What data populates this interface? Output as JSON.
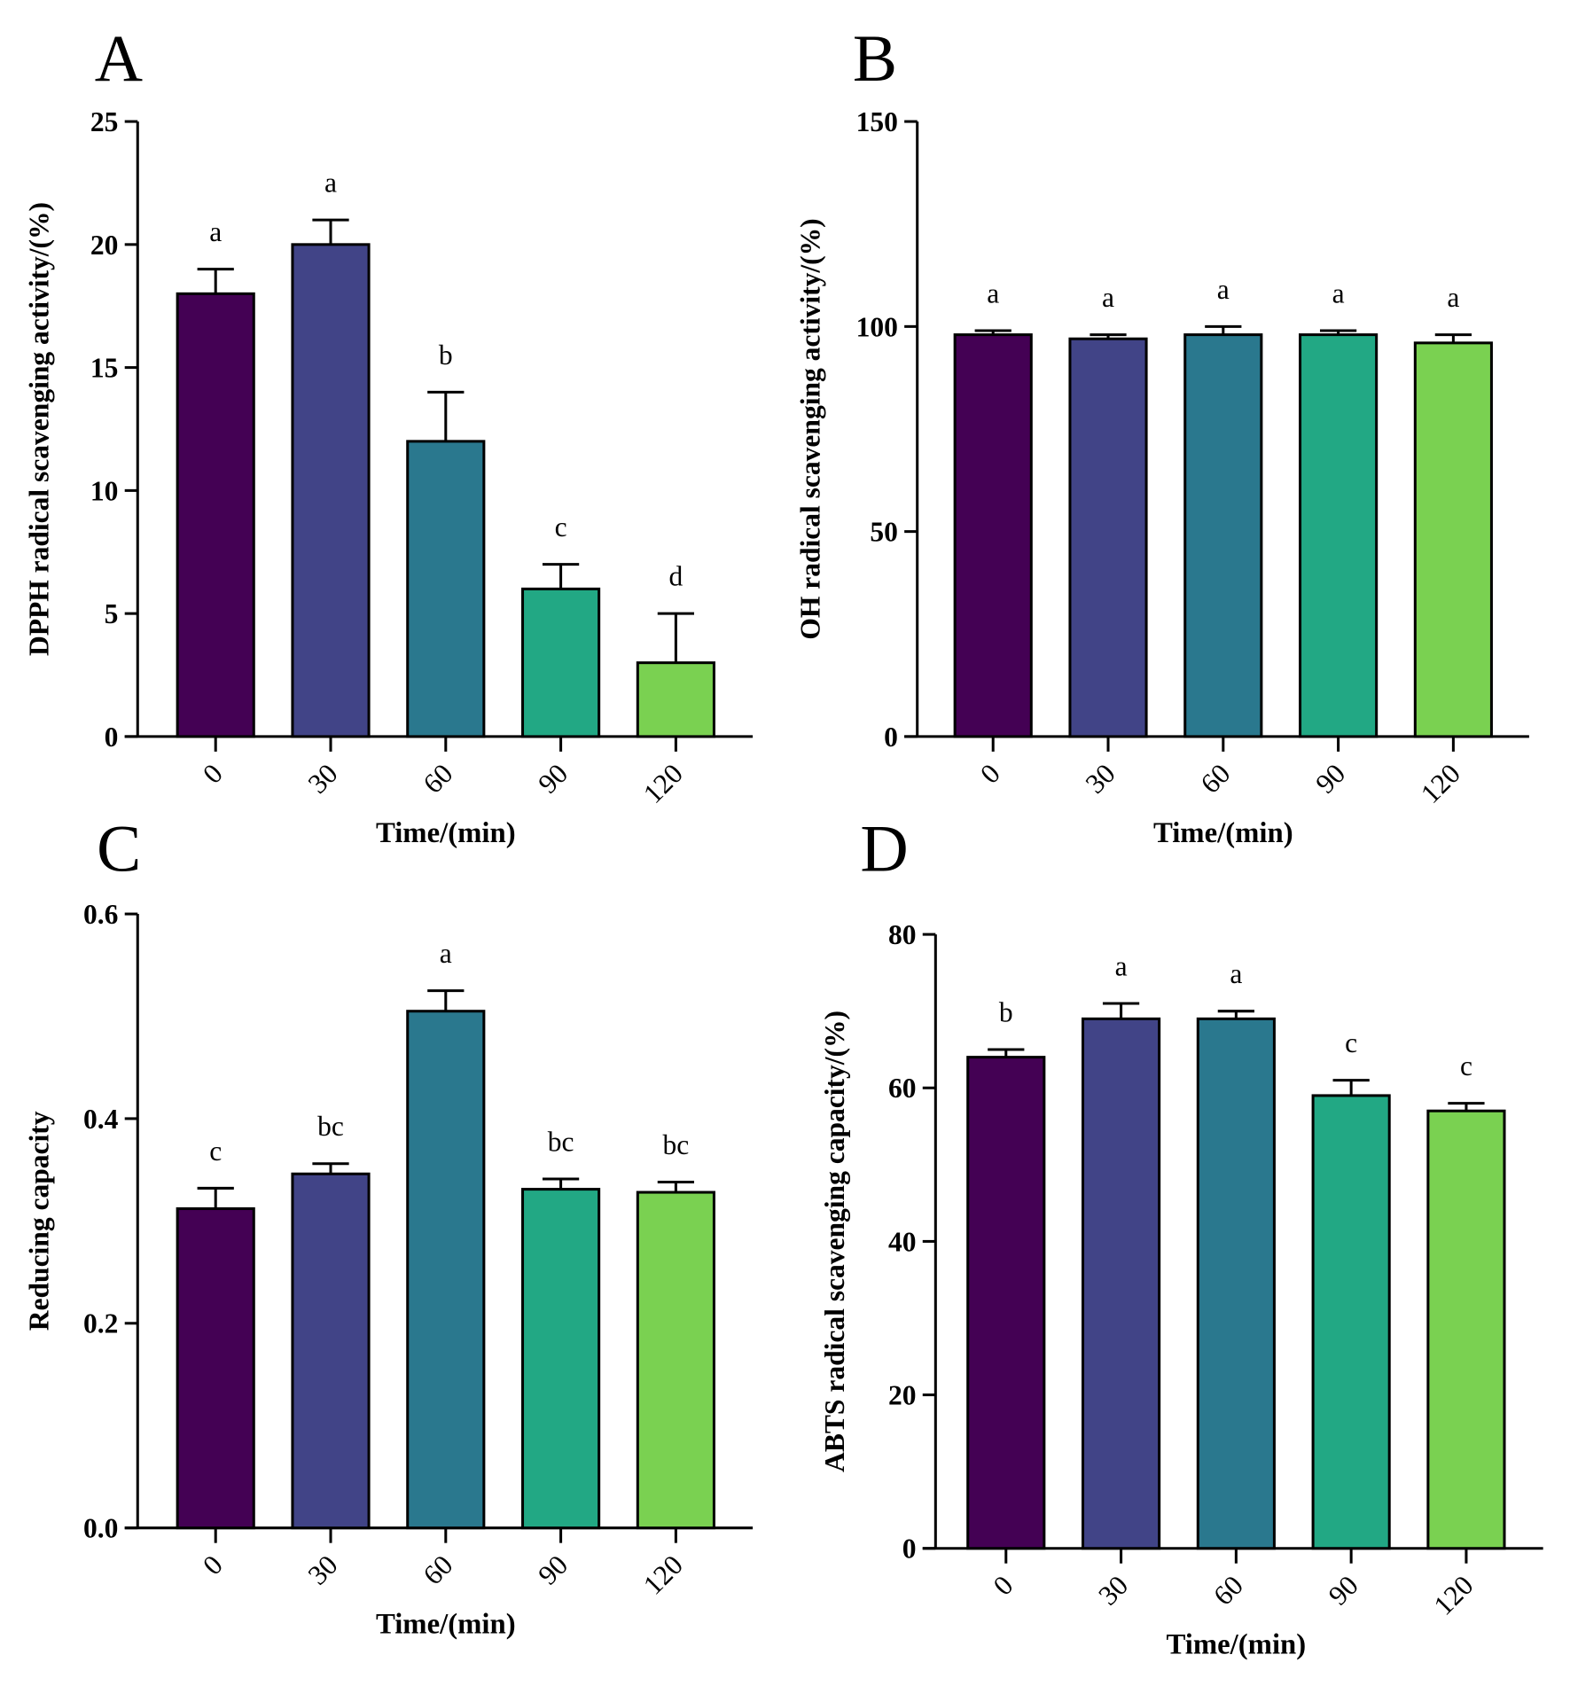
{
  "chart_data": [
    {
      "panel": "A",
      "type": "bar",
      "categories": [
        "0",
        "30",
        "60",
        "90",
        "120"
      ],
      "values": [
        18,
        20,
        12,
        6,
        3
      ],
      "errors": [
        1,
        1,
        2,
        1,
        2
      ],
      "letters": [
        "a",
        "a",
        "b",
        "c",
        "d"
      ],
      "xlabel": "Time/(min)",
      "ylabel": "DPPH radical scavenging activity/(%)",
      "ylim": [
        0,
        25
      ],
      "yticks": [
        0,
        5,
        10,
        15,
        20,
        25
      ],
      "ytick_labels": [
        "0",
        "5",
        "10",
        "15",
        "20",
        "25"
      ]
    },
    {
      "panel": "B",
      "type": "bar",
      "categories": [
        "0",
        "30",
        "60",
        "90",
        "120"
      ],
      "values": [
        98,
        97,
        98,
        98,
        96
      ],
      "errors": [
        1,
        1,
        2,
        1,
        2
      ],
      "letters": [
        "a",
        "a",
        "a",
        "a",
        "a"
      ],
      "xlabel": "Time/(min)",
      "ylabel": "OH radical scavenging activity/(%)",
      "ylim": [
        0,
        150
      ],
      "yticks": [
        0,
        50,
        100,
        150
      ],
      "ytick_labels": [
        "0",
        "50",
        "100",
        "150"
      ]
    },
    {
      "panel": "C",
      "type": "bar",
      "categories": [
        "0",
        "30",
        "60",
        "90",
        "120"
      ],
      "values": [
        0.312,
        0.346,
        0.505,
        0.331,
        0.328
      ],
      "errors": [
        0.02,
        0.01,
        0.02,
        0.01,
        0.01
      ],
      "letters": [
        "c",
        "bc",
        "a",
        "bc",
        "bc"
      ],
      "xlabel": "Time/(min)",
      "ylabel": "Reducing capacity",
      "ylim": [
        0,
        0.6
      ],
      "yticks": [
        0,
        0.2,
        0.4,
        0.6
      ],
      "ytick_labels": [
        "0.0",
        "0.2",
        "0.4",
        "0.6"
      ]
    },
    {
      "panel": "D",
      "type": "bar",
      "categories": [
        "0",
        "30",
        "60",
        "90",
        "120"
      ],
      "values": [
        64,
        69,
        69,
        59,
        57
      ],
      "errors": [
        1,
        2,
        1,
        2,
        1
      ],
      "letters": [
        "b",
        "a",
        "a",
        "c",
        "c"
      ],
      "xlabel": "Time/(min)",
      "ylabel": "ABTS radical scavenging  capacity/(%)",
      "ylim": [
        0,
        80
      ],
      "yticks": [
        0,
        20,
        40,
        60,
        80
      ],
      "ytick_labels": [
        "0",
        "20",
        "40",
        "60",
        "80"
      ]
    }
  ],
  "colors": [
    "#440154",
    "#414487",
    "#2a788e",
    "#22a884",
    "#7ad151"
  ]
}
